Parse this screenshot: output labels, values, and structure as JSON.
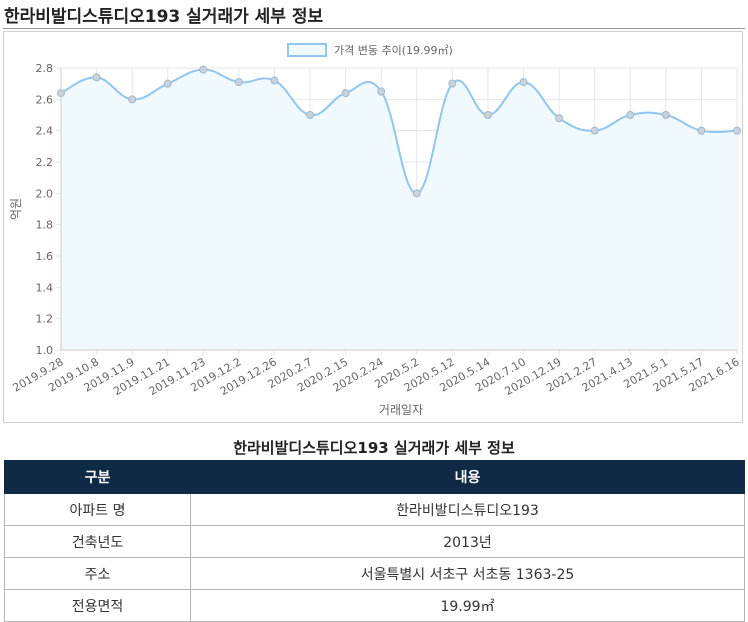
{
  "page_title": "한라비발디스튜디오193 실거래가 세부 정보",
  "chart_data": {
    "type": "line",
    "title": "",
    "xlabel": "거래일자",
    "ylabel": "억원",
    "ylim": [
      1.0,
      2.8
    ],
    "yticks": [
      "1.0",
      "1.2",
      "1.4",
      "1.6",
      "1.8",
      "2.0",
      "2.2",
      "2.4",
      "2.6",
      "2.8"
    ],
    "grid": true,
    "legend_position": "top-center",
    "series_color": "#92c5ef",
    "fill_color": "#f0f9fe",
    "categories": [
      "2019.9.28",
      "2019.10.8",
      "2019.11.9",
      "2019.11.21",
      "2019.11.23",
      "2019.12.2",
      "2019.12.26",
      "2020.2.7",
      "2020.2.15",
      "2020.2.24",
      "2020.5.2",
      "2020.5.12",
      "2020.5.14",
      "2020.7.10",
      "2020.12.19",
      "2021.2.27",
      "2021.4.13",
      "2021.5.1",
      "2021.5.17",
      "2021.6.16"
    ],
    "series": [
      {
        "name": "가격 변동 추이(19.99㎡)",
        "values": [
          2.64,
          2.74,
          2.6,
          2.7,
          2.79,
          2.71,
          2.72,
          2.5,
          2.64,
          2.65,
          2.0,
          2.7,
          2.5,
          2.71,
          2.48,
          2.4,
          2.5,
          2.5,
          2.4,
          2.4
        ]
      }
    ]
  },
  "table": {
    "title": "한라비발디스튜디오193 실거래가 세부 정보",
    "headers": [
      "구분",
      "내용"
    ],
    "rows": [
      [
        "아파트 명",
        "한라비발디스튜디오193"
      ],
      [
        "건축년도",
        "2013년"
      ],
      [
        "주소",
        "서울특별시 서초구 서초동 1363-25"
      ],
      [
        "전용면적",
        "19.99㎡"
      ]
    ]
  }
}
